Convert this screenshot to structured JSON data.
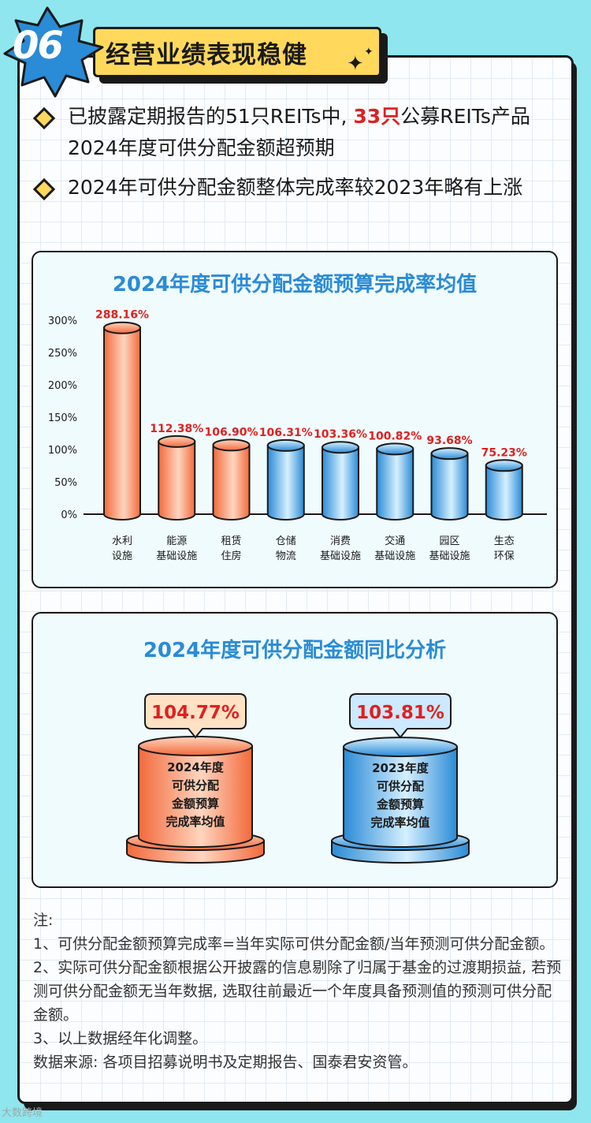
{
  "header": {
    "badge_number": "06",
    "title": "经营业绩表现稳健"
  },
  "bullets": [
    {
      "pre": "已披露定期报告的51只REITs中, ",
      "highlight": "33只",
      "post": "公募REITs产品2024年度可供分配金额超预期"
    },
    {
      "pre": "2024年可供分配金额整体完成率较2023年略有上涨",
      "highlight": "",
      "post": ""
    }
  ],
  "chart_data": [
    {
      "type": "bar",
      "title": "2024年度可供分配金额预算完成率均值",
      "categories": [
        "水利设施",
        "能源基础设施",
        "租赁住房",
        "仓储物流",
        "消费基础设施",
        "交通基础设施",
        "园区基础设施",
        "生态环保"
      ],
      "category_lines": [
        [
          "水利",
          "设施"
        ],
        [
          "能源",
          "基础设施"
        ],
        [
          "租赁",
          "住房"
        ],
        [
          "仓储",
          "物流"
        ],
        [
          "消费",
          "基础设施"
        ],
        [
          "交通",
          "基础设施"
        ],
        [
          "园区",
          "基础设施"
        ],
        [
          "生态",
          "环保"
        ]
      ],
      "values": [
        288.16,
        112.38,
        106.9,
        106.31,
        103.36,
        100.82,
        93.68,
        75.23
      ],
      "data_labels": [
        "288.16%",
        "112.38%",
        "106.90%",
        "106.31%",
        "103.36%",
        "100.82%",
        "93.68%",
        "75.23%"
      ],
      "ylim": [
        0,
        300
      ],
      "yticks": [
        "0%",
        "50%",
        "100%",
        "150%",
        "200%",
        "250%",
        "300%"
      ],
      "bar_colors": [
        "orange",
        "orange",
        "orange",
        "blue",
        "blue",
        "blue",
        "blue",
        "blue"
      ],
      "label_color": "#e02020"
    },
    {
      "type": "bar",
      "title": "2024年度可供分配金额同比分析",
      "categories": [
        "2024年度可供分配金额预算完成率均值",
        "2023年度可供分配金额预算完成率均值"
      ],
      "category_lines": [
        [
          "2024年度",
          "可供分配",
          "金额预算",
          "完成率均值"
        ],
        [
          "2023年度",
          "可供分配",
          "金额预算",
          "完成率均值"
        ]
      ],
      "values": [
        104.77,
        103.81
      ],
      "data_labels": [
        "104.77%",
        "103.81%"
      ],
      "bar_colors": [
        "orange",
        "blue"
      ],
      "label_color": "#e02020"
    }
  ],
  "notes": {
    "heading": "注:",
    "lines": [
      "1、可供分配金额预算完成率=当年实际可供分配金额/当年预测可供分配金额。",
      "2、实际可供分配金额根据公开披露的信息剔除了归属于基金的过渡期损益, 若预测可供分配金额无当年数据, 选取往前最近一个年度具备预测值的预测可供分配金额。",
      "3、以上数据经年化调整。",
      "数据来源: 各项目招募说明书及定期报告、国泰君安资管。"
    ]
  },
  "colors": {
    "orange_dark": "#f26a3c",
    "orange_light": "#ffd5bf",
    "blue_dark": "#2a8bd6",
    "blue_light": "#d6f0ff",
    "title_blue": "#2a8bd6",
    "accent_yellow": "#ffd85c"
  },
  "watermark": "大数跨境"
}
